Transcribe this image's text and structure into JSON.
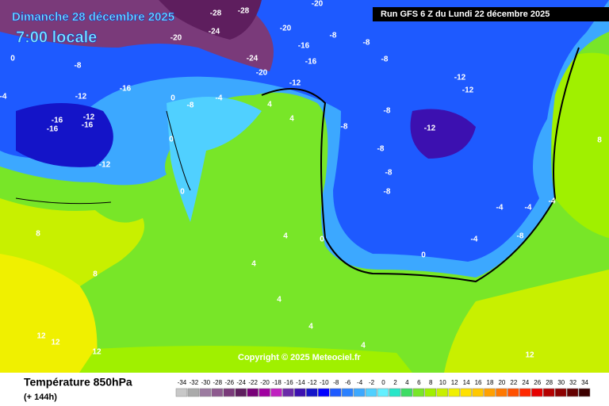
{
  "header": {
    "date": "Dimanche 28 décembre 2025",
    "time": "7:00 locale",
    "run": "Run GFS 6 Z du Lundi 22 décembre 2025"
  },
  "copyright": "Copyright © 2025 Meteociel.fr",
  "footer": {
    "title": "Température 850hPa",
    "lead": "(+ 144h)"
  },
  "colorbar": {
    "ticks": [
      -34,
      -32,
      -30,
      -28,
      -26,
      -24,
      -22,
      -20,
      -18,
      -16,
      -14,
      -12,
      -10,
      -8,
      -6,
      -4,
      -2,
      0,
      2,
      4,
      6,
      8,
      10,
      12,
      14,
      16,
      18,
      20,
      22,
      24,
      26,
      28,
      30,
      32,
      34
    ],
    "colors": [
      "#c8c8c8",
      "#aaaaaa",
      "#9c7ba0",
      "#8e5a8f",
      "#7a3a7a",
      "#5e1e5e",
      "#780078",
      "#a000a0",
      "#c020c0",
      "#6a2aa8",
      "#3c10b0",
      "#1414c8",
      "#0000ff",
      "#1e5aff",
      "#2a80ff",
      "#3ca8ff",
      "#50d0ff",
      "#64f0ff",
      "#28e6c8",
      "#3cdc64",
      "#78e628",
      "#a0f000",
      "#c8f000",
      "#f0f000",
      "#ffe100",
      "#ffc800",
      "#ffa000",
      "#ff7800",
      "#ff5000",
      "#ff2800",
      "#e60000",
      "#b40000",
      "#8c0000",
      "#640000",
      "#3c0000"
    ]
  },
  "map_labels": [
    -28,
    -28,
    -20,
    -24,
    -20,
    -20,
    -16,
    -24,
    -20,
    -16,
    -12,
    -8,
    -12,
    -16,
    -16,
    -16,
    -12,
    -16,
    -12,
    -8,
    -4,
    0,
    0,
    -4,
    -8,
    -8,
    -8,
    -8,
    -8,
    -12,
    -12,
    -12,
    -8,
    -8,
    -8,
    -4,
    -4,
    -4,
    -8,
    -4,
    0,
    0,
    4,
    4,
    4,
    4,
    4,
    4,
    8,
    8,
    8,
    12,
    12,
    12,
    12,
    4,
    0,
    0
  ]
}
